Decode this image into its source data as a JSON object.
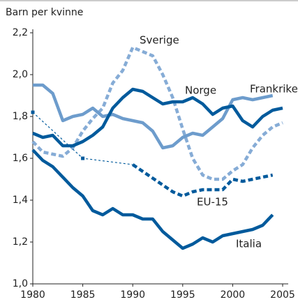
{
  "chart_data": {
    "type": "line",
    "y_label": "Barn per kvinne",
    "xlim": [
      1980,
      2005
    ],
    "xticks": [
      1980,
      1985,
      1990,
      1995,
      2000,
      2005
    ],
    "ylim": [
      1.0,
      2.2
    ],
    "yticks": [
      {
        "value": 1.0,
        "label": "1,0"
      },
      {
        "value": 1.2,
        "label": "1,2"
      },
      {
        "value": 1.4,
        "label": "1,4"
      },
      {
        "value": 1.6,
        "label": "1,6"
      },
      {
        "value": 1.8,
        "label": "1,8"
      },
      {
        "value": 2.0,
        "label": "2,0"
      },
      {
        "value": 2.2,
        "label": "2,2"
      }
    ],
    "series": [
      {
        "name": "Sverige",
        "color": "#86acd6",
        "dashed": true,
        "x": [
          1980,
          1981,
          1982,
          1983,
          1984,
          1985,
          1986,
          1987,
          1988,
          1989,
          1990,
          1991,
          1992,
          1993,
          1994,
          1995,
          1996,
          1997,
          1998,
          1999,
          2000,
          2001,
          2002,
          2003,
          2004,
          2005
        ],
        "values": [
          1.68,
          1.63,
          1.62,
          1.61,
          1.65,
          1.73,
          1.79,
          1.84,
          1.96,
          2.02,
          2.13,
          2.11,
          2.09,
          2.0,
          1.89,
          1.74,
          1.6,
          1.52,
          1.5,
          1.5,
          1.54,
          1.57,
          1.65,
          1.71,
          1.75,
          1.77
        ]
      },
      {
        "name": "Frankrike",
        "color": "#6d9ccc",
        "dashed": false,
        "x": [
          1980,
          1981,
          1982,
          1983,
          1984,
          1985,
          1986,
          1987,
          1988,
          1989,
          1990,
          1991,
          1992,
          1993,
          1994,
          1995,
          1996,
          1997,
          1998,
          1999,
          2000,
          2001,
          2002,
          2003,
          2004
        ],
        "values": [
          1.95,
          1.95,
          1.91,
          1.78,
          1.8,
          1.81,
          1.84,
          1.8,
          1.81,
          1.79,
          1.78,
          1.77,
          1.73,
          1.65,
          1.66,
          1.7,
          1.72,
          1.71,
          1.75,
          1.79,
          1.88,
          1.89,
          1.88,
          1.89,
          1.9
        ]
      },
      {
        "name": "Norge",
        "color": "#005a9c",
        "dashed": false,
        "x": [
          1980,
          1981,
          1982,
          1983,
          1984,
          1985,
          1986,
          1987,
          1988,
          1989,
          1990,
          1991,
          1992,
          1993,
          1994,
          1995,
          1996,
          1997,
          1998,
          1999,
          2000,
          2001,
          2002,
          2003,
          2004,
          2005
        ],
        "values": [
          1.72,
          1.7,
          1.71,
          1.66,
          1.66,
          1.68,
          1.71,
          1.75,
          1.84,
          1.89,
          1.93,
          1.92,
          1.89,
          1.86,
          1.87,
          1.87,
          1.89,
          1.86,
          1.81,
          1.84,
          1.85,
          1.78,
          1.75,
          1.8,
          1.83,
          1.84
        ]
      },
      {
        "name": "EU-15",
        "color": "#005a9c",
        "dashed": true,
        "x": [
          1980,
          1985,
          1990,
          1994,
          1995,
          1996,
          1997,
          1998,
          1999,
          2000,
          2001,
          2002,
          2003,
          2004
        ],
        "values": [
          1.82,
          1.6,
          1.57,
          1.44,
          1.42,
          1.44,
          1.45,
          1.45,
          1.45,
          1.5,
          1.49,
          1.5,
          1.51,
          1.52
        ]
      },
      {
        "name": "Italia",
        "color": "#005a9c",
        "dashed": false,
        "x": [
          1980,
          1981,
          1982,
          1983,
          1984,
          1985,
          1986,
          1987,
          1988,
          1989,
          1990,
          1991,
          1992,
          1993,
          1994,
          1995,
          1996,
          1997,
          1998,
          1999,
          2000,
          2001,
          2002,
          2003,
          2004
        ],
        "values": [
          1.64,
          1.59,
          1.56,
          1.51,
          1.46,
          1.42,
          1.35,
          1.33,
          1.36,
          1.33,
          1.33,
          1.31,
          1.31,
          1.25,
          1.21,
          1.17,
          1.19,
          1.22,
          1.2,
          1.23,
          1.24,
          1.25,
          1.26,
          1.28,
          1.33
        ]
      }
    ]
  }
}
